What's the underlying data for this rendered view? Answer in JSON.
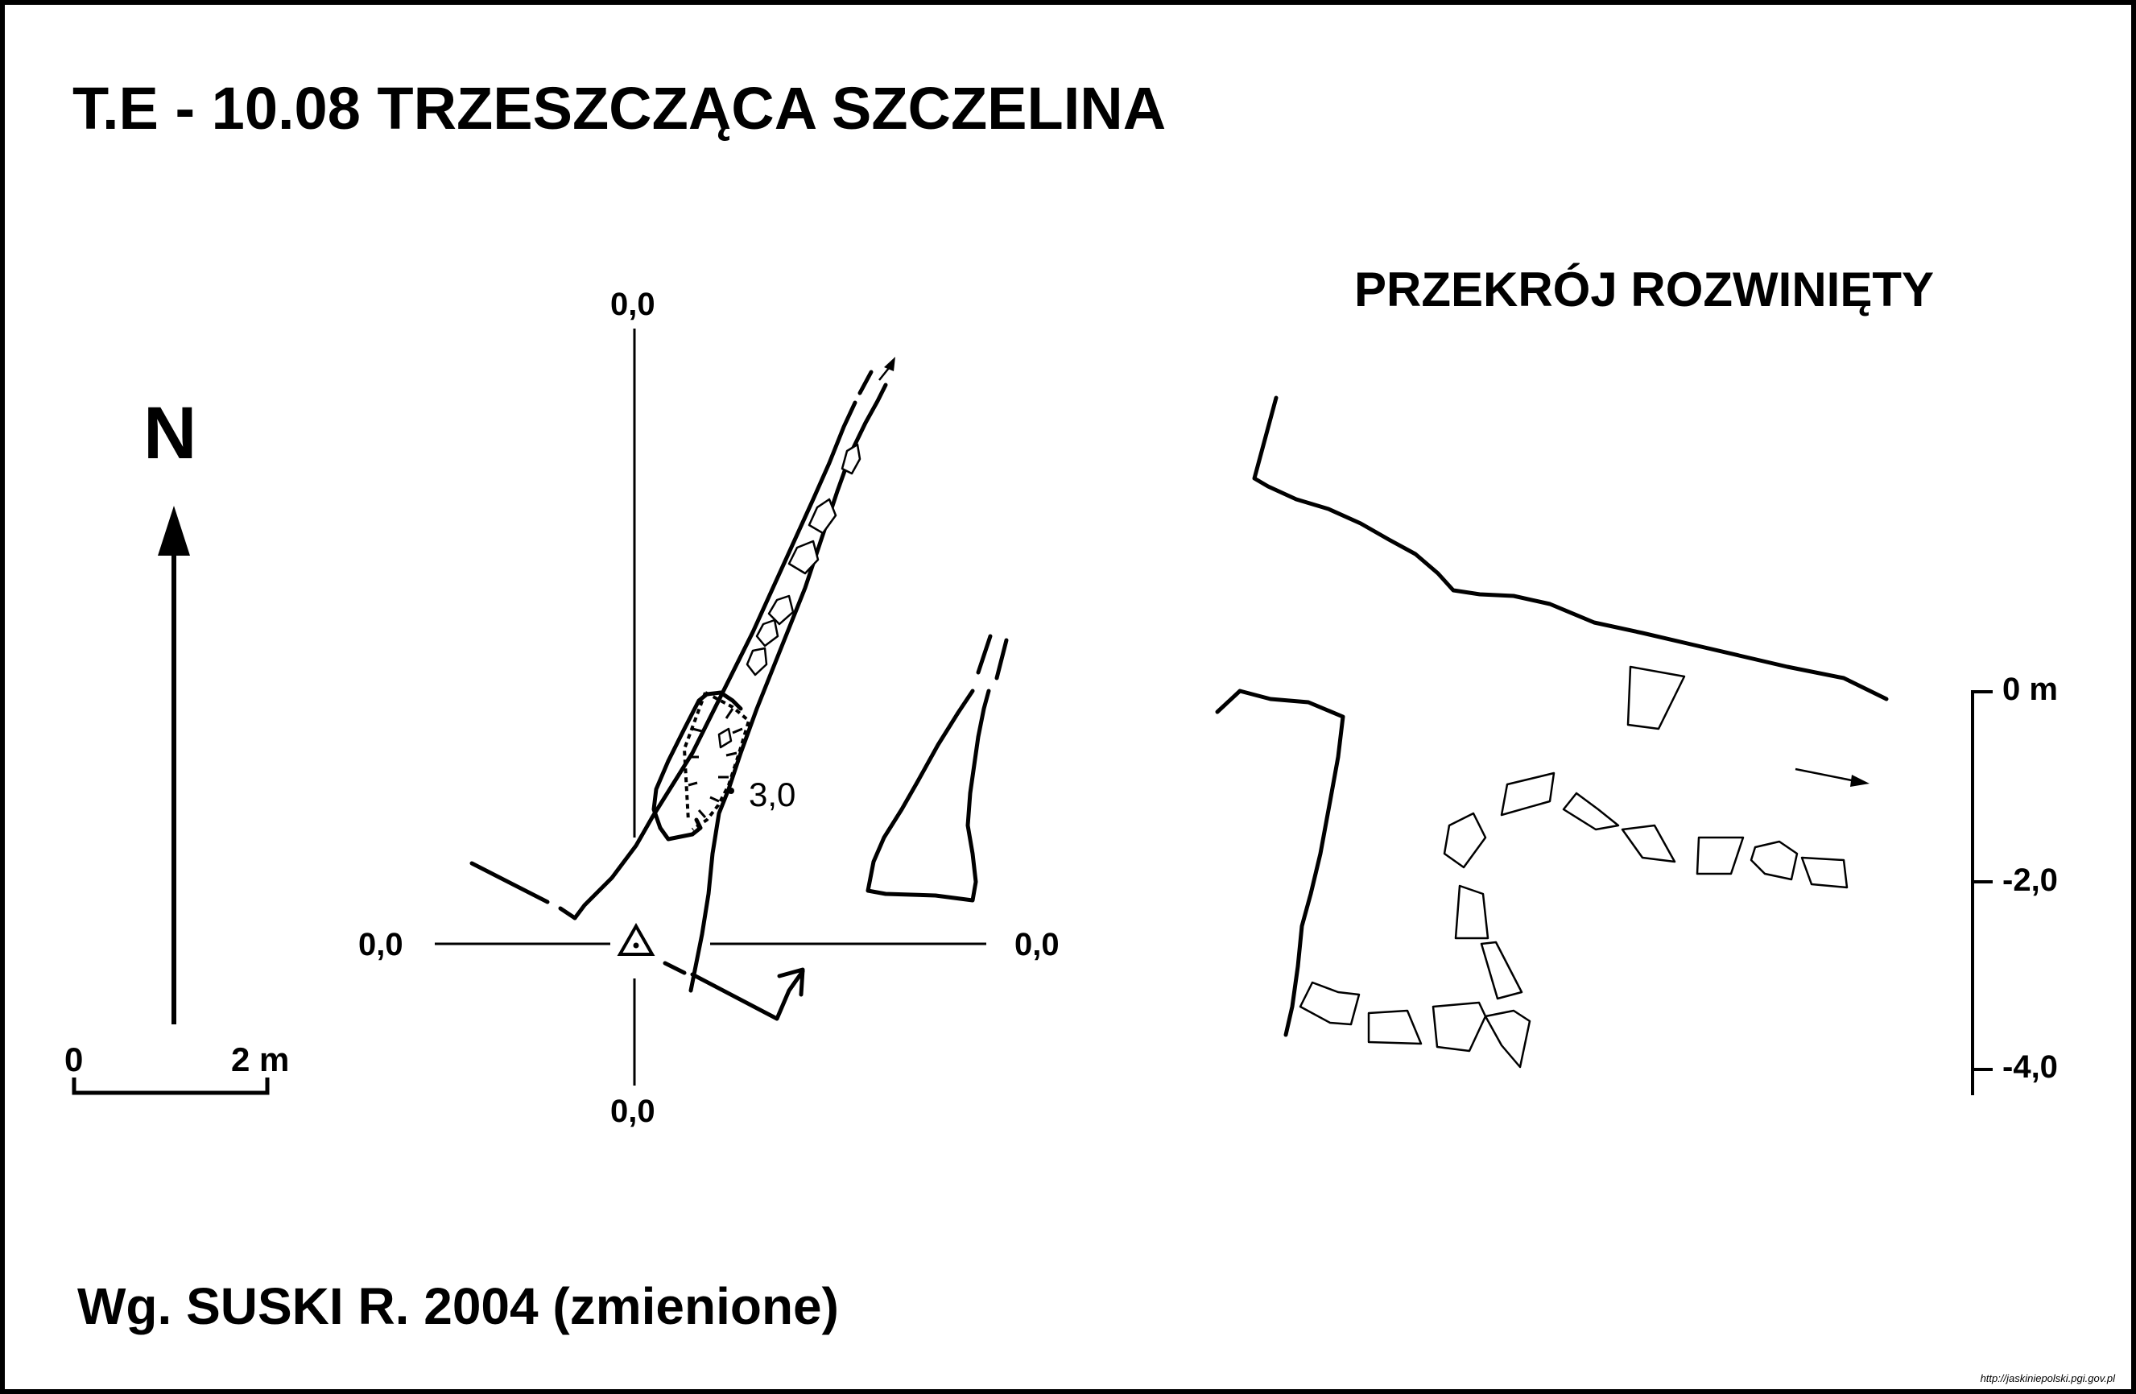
{
  "title": "T.E - 10.08  TRZESZCZĄCA SZCZELINA",
  "section_title": "PRZEKRÓJ ROZWINIĘTY",
  "north_label": "N",
  "scale": {
    "start": "0",
    "end": "2 m"
  },
  "plan_axes": {
    "top": "0,0",
    "bottom": "0,0",
    "left": "0,0",
    "right": "0,0"
  },
  "depth_label": "3,0",
  "depth_scale": {
    "top": "0 m",
    "mid": "-2,0",
    "bottom": "-4,0"
  },
  "credit": "Wg. SUSKI R. 2004 (zmienione)",
  "watermark": "http://jaskiniepolski.pgi.gov.pl"
}
